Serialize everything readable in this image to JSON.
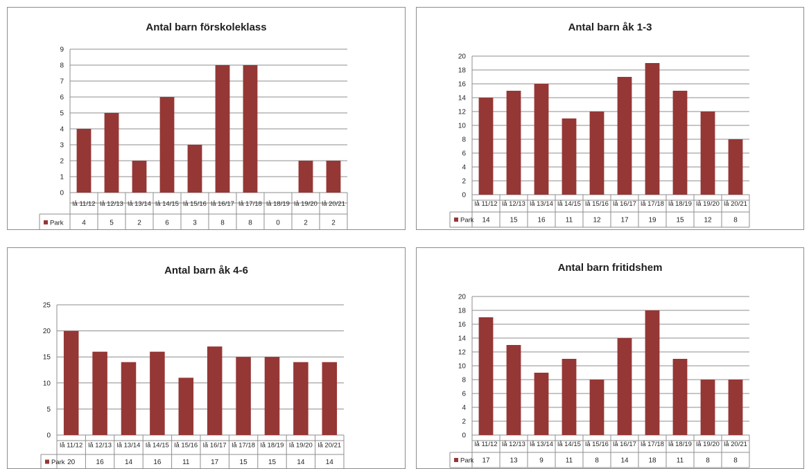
{
  "colors": {
    "bar": "#953735",
    "grid": "#8c8c8c",
    "axis": "#8c8c8c"
  },
  "chart_data": [
    {
      "type": "bar",
      "title": "Antal barn förskoleklass",
      "categories": [
        "lå 11/12",
        "lå 12/13",
        "lå 13/14",
        "lå 14/15",
        "lå 15/16",
        "lå 16/17",
        "lå 17/18",
        "lå 18/19",
        "lå 19/20",
        "lå 20/21"
      ],
      "series": [
        {
          "name": "Park",
          "values": [
            4,
            5,
            2,
            6,
            3,
            8,
            8,
            0,
            2,
            2
          ]
        }
      ],
      "value_labels": [
        "4",
        "5",
        "2",
        "6",
        "3",
        "8",
        "8",
        "0",
        "2",
        "2"
      ],
      "yticks": [
        "0",
        "1",
        "2",
        "3",
        "4",
        "5",
        "6",
        "7",
        "8",
        "9"
      ],
      "ylim": [
        0,
        9
      ],
      "grid": true,
      "legend": "data-table"
    },
    {
      "type": "bar",
      "title": "Antal barn åk 1-3",
      "categories": [
        "lå 11/12",
        "lå 12/13",
        "lå 13/14",
        "lå 14/15",
        "lå 15/16",
        "lå 16/17",
        "lå 17/18",
        "lå 18/19",
        "lå 19/20",
        "lå 20/21"
      ],
      "series": [
        {
          "name": "Park",
          "values": [
            14,
            15,
            16,
            11,
            12,
            17,
            19,
            15,
            12,
            8
          ]
        }
      ],
      "value_labels": [
        "14",
        "15",
        "16",
        "11",
        "12",
        "17",
        "19",
        "15",
        "12",
        "8"
      ],
      "yticks": [
        "0",
        "2",
        "4",
        "6",
        "8",
        "10",
        "12",
        "14",
        "16",
        "18",
        "20"
      ],
      "ylim": [
        0,
        20
      ],
      "grid": true,
      "legend": "data-table"
    },
    {
      "type": "bar",
      "title": "Antal barn åk 4-6",
      "categories": [
        "lå 11/12",
        "lå 12/13",
        "lå 13/14",
        "lå 14/15",
        "lå 15/16",
        "lå 16/17",
        "lå 17/18",
        "lå 18/19",
        "lå 19/20",
        "lå 20/21"
      ],
      "series": [
        {
          "name": "Park",
          "values": [
            20,
            16,
            14,
            16,
            11,
            17,
            15,
            15,
            14,
            14
          ]
        }
      ],
      "value_labels": [
        "20",
        "16",
        "14",
        "16",
        "11",
        "17",
        "15",
        "15",
        "14",
        "14"
      ],
      "yticks": [
        "0",
        "5",
        "10",
        "15",
        "20",
        "25"
      ],
      "ylim": [
        0,
        25
      ],
      "grid": true,
      "legend": "data-table"
    },
    {
      "type": "bar",
      "title": "Antal barn fritidshem",
      "categories": [
        "lå 11/12",
        "lå 12/13",
        "lå 13/14",
        "lå 14/15",
        "lå 15/16",
        "lå 16/17",
        "lå 17/18",
        "lå 18/19",
        "lå 19/20",
        "lå 20/21"
      ],
      "series": [
        {
          "name": "Park",
          "values": [
            17,
            13,
            9,
            11,
            8,
            14,
            18,
            11,
            8,
            8
          ]
        }
      ],
      "value_labels": [
        "17",
        "13",
        "9",
        "11",
        "8",
        "14",
        "18",
        "11",
        "8",
        "8"
      ],
      "yticks": [
        "0",
        "2",
        "4",
        "6",
        "8",
        "10",
        "12",
        "14",
        "16",
        "18",
        "20"
      ],
      "ylim": [
        0,
        20
      ],
      "grid": true,
      "legend": "data-table"
    }
  ]
}
